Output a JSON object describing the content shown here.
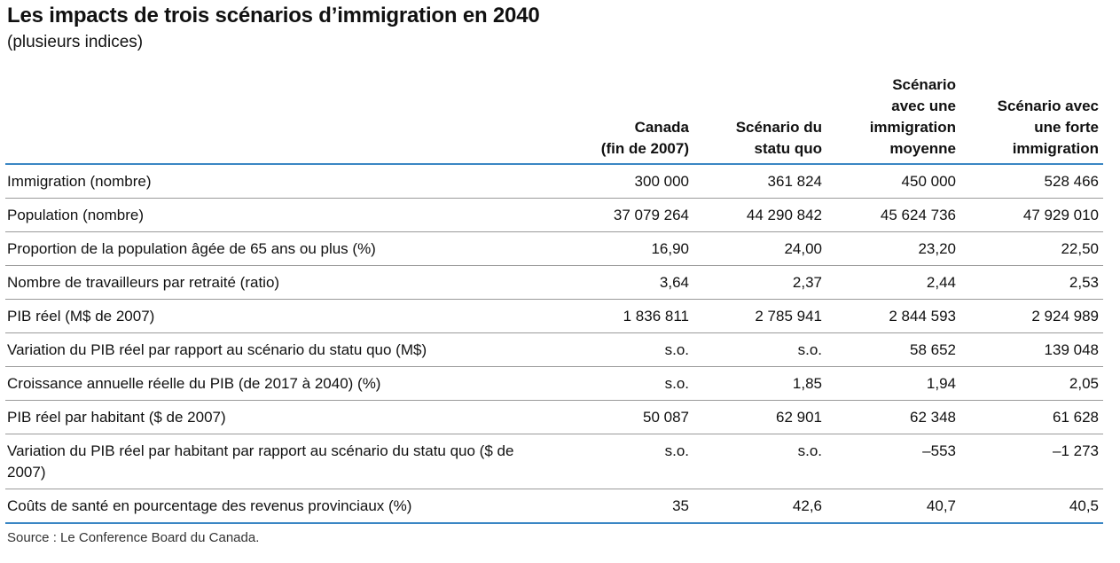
{
  "title": "Les impacts de trois scénarios d’immigration en 2040",
  "subtitle": "(plusieurs indices)",
  "source": "Source : Le Conference Board du Canada.",
  "accent_color": "#3a86c4",
  "chart_data": {
    "type": "table",
    "columns": [
      {
        "line1": "",
        "line2": "",
        "line3": "Canada",
        "line4": "(fin de 2007)"
      },
      {
        "line1": "",
        "line2": "",
        "line3": "Scénario du",
        "line4": "statu quo"
      },
      {
        "line1": "Scénario",
        "line2": "avec une",
        "line3": "immigration",
        "line4": "moyenne"
      },
      {
        "line1": "",
        "line2": "Scénario avec",
        "line3": "une forte",
        "line4": "immigration"
      }
    ],
    "rows": [
      {
        "label": "Immigration (nombre)",
        "values": [
          "300 000",
          "361 824",
          "450 000",
          "528 466"
        ]
      },
      {
        "label": "Population (nombre)",
        "values": [
          "37 079 264",
          "44 290 842",
          "45 624 736",
          "47 929 010"
        ]
      },
      {
        "label": "Proportion de la population âgée de 65 ans ou plus (%)",
        "values": [
          "16,90",
          "24,00",
          "23,20",
          "22,50"
        ]
      },
      {
        "label": "Nombre de travailleurs par retraité (ratio)",
        "values": [
          "3,64",
          "2,37",
          "2,44",
          "2,53"
        ]
      },
      {
        "label": "PIB réel (M$ de 2007)",
        "values": [
          "1 836 811",
          "2 785 941",
          "2 844 593",
          "2 924 989"
        ]
      },
      {
        "label": "Variation du PIB réel par rapport au scénario du statu quo (M$)",
        "values": [
          "s.o.",
          "s.o.",
          "58 652",
          "139 048"
        ]
      },
      {
        "label": "Croissance annuelle réelle du PIB (de 2017 à 2040) (%)",
        "values": [
          "s.o.",
          "1,85",
          "1,94",
          "2,05"
        ]
      },
      {
        "label": "PIB réel par habitant ($ de 2007)",
        "values": [
          "50 087",
          "62 901",
          "62 348",
          "61 628"
        ]
      },
      {
        "label": "Variation du PIB réel par habitant par rapport au scénario du statu quo ($ de 2007)",
        "values": [
          "s.o.",
          "s.o.",
          "–553",
          "–1 273"
        ]
      },
      {
        "label": "Coûts de santé en pourcentage des revenus provinciaux (%)",
        "values": [
          "35",
          "42,6",
          "40,7",
          "40,5"
        ]
      }
    ]
  }
}
